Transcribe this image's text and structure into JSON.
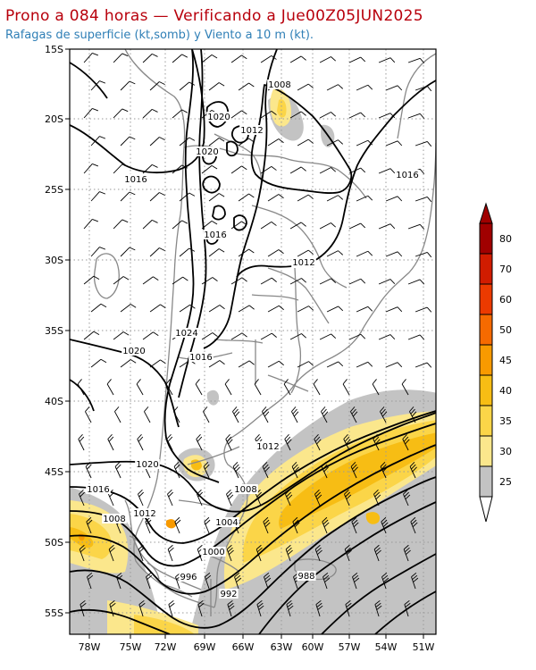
{
  "header": {
    "title": "Prono a 084 horas — Verificando a Jue00Z05JUN2025",
    "subtitle": "Rafagas de superficie (kt,somb) y Viento a 10 m (kt)."
  },
  "axes": {
    "lat_labels": [
      "15S",
      "20S",
      "25S",
      "30S",
      "35S",
      "40S",
      "45S",
      "50S",
      "55S"
    ],
    "lon_labels": [
      "78W",
      "75W",
      "72W",
      "69W",
      "66W",
      "63W",
      "60W",
      "57W",
      "54W",
      "51W"
    ]
  },
  "legend": {
    "levels": [
      "80",
      "70",
      "60",
      "50",
      "45",
      "40",
      "35",
      "30",
      "25"
    ],
    "colors": [
      "#a00000",
      "#d11c00",
      "#ec3a00",
      "#f66a00",
      "#f89a00",
      "#f7bd14",
      "#fbd548",
      "#fbe78c",
      "#c3c3c3"
    ]
  },
  "isobar_labels": [
    {
      "text": "1008"
    },
    {
      "text": "1020"
    },
    {
      "text": "1012"
    },
    {
      "text": "1020"
    },
    {
      "text": "1016"
    },
    {
      "text": "1016"
    },
    {
      "text": "1016"
    },
    {
      "text": "1012"
    },
    {
      "text": "1024"
    },
    {
      "text": "1020"
    },
    {
      "text": "1016"
    },
    {
      "text": "1012"
    },
    {
      "text": "1020"
    },
    {
      "text": "1016"
    },
    {
      "text": "1012"
    },
    {
      "text": "1008"
    },
    {
      "text": "1008"
    },
    {
      "text": "1004"
    },
    {
      "text": "1000"
    },
    {
      "text": "996"
    },
    {
      "text": "992"
    },
    {
      "text": "988"
    }
  ]
}
